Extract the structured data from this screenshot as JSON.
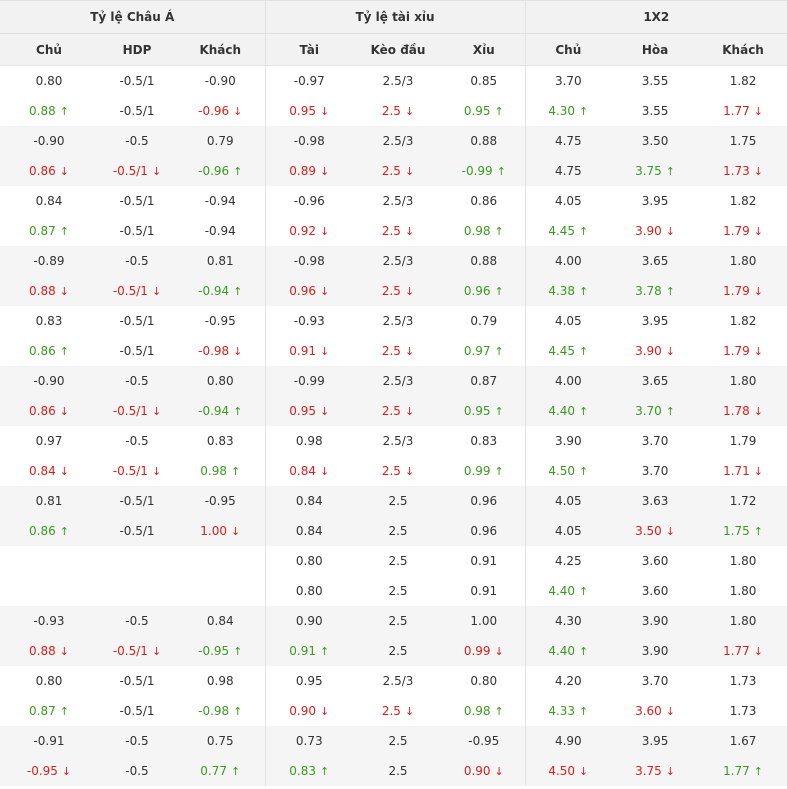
{
  "groups": [
    "Tỷ lệ Châu Á",
    "Tỷ lệ tài xỉu",
    "1X2"
  ],
  "columns": [
    "Chủ",
    "HDP",
    "Khách",
    "Tài",
    "Kèo đầu",
    "Xỉu",
    "Chủ",
    "Hòa",
    "Khách"
  ],
  "colors": {
    "up": "#3a9a1f",
    "down": "#d8201c"
  },
  "blocks": [
    {
      "open": [
        "0.80",
        "-0.5/1",
        "-0.90",
        "-0.97",
        "2.5/3",
        "0.85",
        "3.70",
        "3.55",
        "1.82"
      ],
      "live": [
        [
          "0.88",
          "u"
        ],
        [
          "-0.5/1",
          ""
        ],
        [
          "-0.96",
          "d"
        ],
        [
          "0.95",
          "d"
        ],
        [
          "2.5",
          "d"
        ],
        [
          "0.95",
          "u"
        ],
        [
          "4.30",
          "u"
        ],
        [
          "3.55",
          ""
        ],
        [
          "1.77",
          "d"
        ]
      ]
    },
    {
      "open": [
        "-0.90",
        "-0.5",
        "0.79",
        "-0.98",
        "2.5/3",
        "0.88",
        "4.75",
        "3.50",
        "1.75"
      ],
      "live": [
        [
          "0.86",
          "d"
        ],
        [
          "-0.5/1",
          "d"
        ],
        [
          "-0.96",
          "u"
        ],
        [
          "0.89",
          "d"
        ],
        [
          "2.5",
          "d"
        ],
        [
          "-0.99",
          "u"
        ],
        [
          "4.75",
          ""
        ],
        [
          "3.75",
          "u"
        ],
        [
          "1.73",
          "d"
        ]
      ]
    },
    {
      "open": [
        "0.84",
        "-0.5/1",
        "-0.94",
        "-0.96",
        "2.5/3",
        "0.86",
        "4.05",
        "3.95",
        "1.82"
      ],
      "live": [
        [
          "0.87",
          "u"
        ],
        [
          "-0.5/1",
          ""
        ],
        [
          "-0.94",
          ""
        ],
        [
          "0.92",
          "d"
        ],
        [
          "2.5",
          "d"
        ],
        [
          "0.98",
          "u"
        ],
        [
          "4.45",
          "u"
        ],
        [
          "3.90",
          "d"
        ],
        [
          "1.79",
          "d"
        ]
      ]
    },
    {
      "open": [
        "-0.89",
        "-0.5",
        "0.81",
        "-0.98",
        "2.5/3",
        "0.88",
        "4.00",
        "3.65",
        "1.80"
      ],
      "live": [
        [
          "0.88",
          "d"
        ],
        [
          "-0.5/1",
          "d"
        ],
        [
          "-0.94",
          "u"
        ],
        [
          "0.96",
          "d"
        ],
        [
          "2.5",
          "d"
        ],
        [
          "0.96",
          "u"
        ],
        [
          "4.38",
          "u"
        ],
        [
          "3.78",
          "u"
        ],
        [
          "1.79",
          "d"
        ]
      ]
    },
    {
      "open": [
        "0.83",
        "-0.5/1",
        "-0.95",
        "-0.93",
        "2.5/3",
        "0.79",
        "4.05",
        "3.95",
        "1.82"
      ],
      "live": [
        [
          "0.86",
          "u"
        ],
        [
          "-0.5/1",
          ""
        ],
        [
          "-0.98",
          "d"
        ],
        [
          "0.91",
          "d"
        ],
        [
          "2.5",
          "d"
        ],
        [
          "0.97",
          "u"
        ],
        [
          "4.45",
          "u"
        ],
        [
          "3.90",
          "d"
        ],
        [
          "1.79",
          "d"
        ]
      ]
    },
    {
      "open": [
        "-0.90",
        "-0.5",
        "0.80",
        "-0.99",
        "2.5/3",
        "0.87",
        "4.00",
        "3.65",
        "1.80"
      ],
      "live": [
        [
          "0.86",
          "d"
        ],
        [
          "-0.5/1",
          "d"
        ],
        [
          "-0.94",
          "u"
        ],
        [
          "0.95",
          "d"
        ],
        [
          "2.5",
          "d"
        ],
        [
          "0.95",
          "u"
        ],
        [
          "4.40",
          "u"
        ],
        [
          "3.70",
          "u"
        ],
        [
          "1.78",
          "d"
        ]
      ]
    },
    {
      "open": [
        "0.97",
        "-0.5",
        "0.83",
        "0.98",
        "2.5/3",
        "0.83",
        "3.90",
        "3.70",
        "1.79"
      ],
      "live": [
        [
          "0.84",
          "d"
        ],
        [
          "-0.5/1",
          "d"
        ],
        [
          "0.98",
          "u"
        ],
        [
          "0.84",
          "d"
        ],
        [
          "2.5",
          "d"
        ],
        [
          "0.99",
          "u"
        ],
        [
          "4.50",
          "u"
        ],
        [
          "3.70",
          ""
        ],
        [
          "1.71",
          "d"
        ]
      ]
    },
    {
      "open": [
        "0.81",
        "-0.5/1",
        "-0.95",
        "0.84",
        "2.5",
        "0.96",
        "4.05",
        "3.63",
        "1.72"
      ],
      "live": [
        [
          "0.86",
          "u"
        ],
        [
          "-0.5/1",
          ""
        ],
        [
          "1.00",
          "d"
        ],
        [
          "0.84",
          ""
        ],
        [
          "2.5",
          ""
        ],
        [
          "0.96",
          ""
        ],
        [
          "4.05",
          ""
        ],
        [
          "3.50",
          "d"
        ],
        [
          "1.75",
          "u"
        ]
      ]
    },
    {
      "open": [
        "",
        "",
        "",
        "0.80",
        "2.5",
        "0.91",
        "4.25",
        "3.60",
        "1.80"
      ],
      "live": [
        [
          "",
          ""
        ],
        [
          "",
          ""
        ],
        [
          "",
          ""
        ],
        [
          "0.80",
          ""
        ],
        [
          "2.5",
          ""
        ],
        [
          "0.91",
          ""
        ],
        [
          "4.40",
          "u"
        ],
        [
          "3.60",
          ""
        ],
        [
          "1.80",
          ""
        ]
      ]
    },
    {
      "open": [
        "-0.93",
        "-0.5",
        "0.84",
        "0.90",
        "2.5",
        "1.00",
        "4.30",
        "3.90",
        "1.80"
      ],
      "live": [
        [
          "0.88",
          "d"
        ],
        [
          "-0.5/1",
          "d"
        ],
        [
          "-0.95",
          "u"
        ],
        [
          "0.91",
          "u"
        ],
        [
          "2.5",
          ""
        ],
        [
          "0.99",
          "d"
        ],
        [
          "4.40",
          "u"
        ],
        [
          "3.90",
          ""
        ],
        [
          "1.77",
          "d"
        ]
      ]
    },
    {
      "open": [
        "0.80",
        "-0.5/1",
        "0.98",
        "0.95",
        "2.5/3",
        "0.80",
        "4.20",
        "3.70",
        "1.73"
      ],
      "live": [
        [
          "0.87",
          "u"
        ],
        [
          "-0.5/1",
          ""
        ],
        [
          "-0.98",
          "u"
        ],
        [
          "0.90",
          "d"
        ],
        [
          "2.5",
          "d"
        ],
        [
          "0.98",
          "u"
        ],
        [
          "4.33",
          "u"
        ],
        [
          "3.60",
          "d"
        ],
        [
          "1.73",
          ""
        ]
      ]
    },
    {
      "open": [
        "-0.91",
        "-0.5",
        "0.75",
        "0.73",
        "2.5",
        "-0.95",
        "4.90",
        "3.95",
        "1.67"
      ],
      "live": [
        [
          "-0.95",
          "d"
        ],
        [
          "-0.5",
          ""
        ],
        [
          "0.77",
          "u"
        ],
        [
          "0.83",
          "u"
        ],
        [
          "2.5",
          ""
        ],
        [
          "0.90",
          "d"
        ],
        [
          "4.50",
          "d"
        ],
        [
          "3.75",
          "d"
        ],
        [
          "1.77",
          "u"
        ]
      ]
    }
  ]
}
